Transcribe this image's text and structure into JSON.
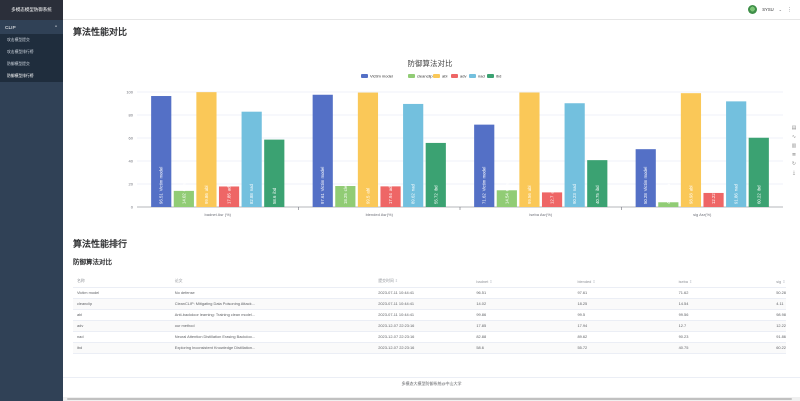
{
  "sidebar": {
    "logo": "多模态模型防御系统",
    "group": "CLIP",
    "items": [
      {
        "label": "攻击模型提交"
      },
      {
        "label": "攻击模型排行榜"
      },
      {
        "label": "防御模型提交"
      },
      {
        "label": "防御模型排行榜"
      }
    ]
  },
  "topbar": {
    "user": "SYSU",
    "caret": "⌄",
    "more": "⋮"
  },
  "page": {
    "title": "算法性能对比",
    "rank_title": "算法性能排行",
    "sub_title": "防御算法对比",
    "footer": "多模态大模型防御系统@中山大学"
  },
  "chart_data": {
    "type": "bar",
    "title": "防御算法对比",
    "categories": [
      "badnet Asr (%)",
      "blended Asr(%)",
      "iseba Asr(%)",
      "sig Asr(%)"
    ],
    "series": [
      {
        "name": "Victim model",
        "color": "#5470c6",
        "values": [
          96.51,
          97.61,
          71.62,
          50.28
        ]
      },
      {
        "name": "cleanclip",
        "color": "#91cc75",
        "values": [
          14.02,
          18.25,
          14.54,
          4.11
        ]
      },
      {
        "name": "abl",
        "color": "#fac858",
        "values": [
          99.86,
          99.5,
          99.56,
          98.98
        ]
      },
      {
        "name": "adv",
        "color": "#ee6666",
        "values": [
          17.85,
          17.94,
          12.7,
          12.22
        ]
      },
      {
        "name": "nad",
        "color": "#73c0de",
        "values": [
          82.88,
          89.62,
          90.23,
          91.86
        ]
      },
      {
        "name": "ibd",
        "color": "#3ba272",
        "values": [
          58.6,
          55.72,
          40.75,
          60.22
        ]
      }
    ],
    "ylim": [
      0,
      100
    ],
    "yticks": [
      "0",
      "20",
      "40",
      "60",
      "80",
      "100"
    ],
    "grid": true,
    "legend": "top"
  },
  "table": {
    "headers": [
      "名称",
      "论文",
      "提交时间",
      "badnet",
      "blended",
      "iseba",
      "sig"
    ],
    "rows": [
      [
        "Victim model",
        "No defense",
        "2023-07-11 10:44:41",
        "96.51",
        "97.61",
        "71.62",
        "50.28"
      ],
      [
        "cleanclip",
        "CleanCLIP: Mitigating Data Poisoning Attack...",
        "2023-07-11 10:44:41",
        "14.02",
        "18.25",
        "14.54",
        "4.11"
      ],
      [
        "abl",
        "Anti-backdoor learning: Training clean model...",
        "2023-07-11 10:44:41",
        "99.86",
        "99.5",
        "99.56",
        "98.98"
      ],
      [
        "adv",
        "our method",
        "2023-12-07 22:23:16",
        "17.85",
        "17.94",
        "12.7",
        "12.22"
      ],
      [
        "nad",
        "Neural Attention Distillation Erasing Backdoo...",
        "2023-12-07 22:23:16",
        "82.88",
        "89.62",
        "90.23",
        "91.86"
      ],
      [
        "ibd",
        "Exploring Inconsistent Knowledge Distillation...",
        "2023-12-07 22:23:16",
        "58.6",
        "55.72",
        "40.75",
        "60.22"
      ]
    ]
  }
}
